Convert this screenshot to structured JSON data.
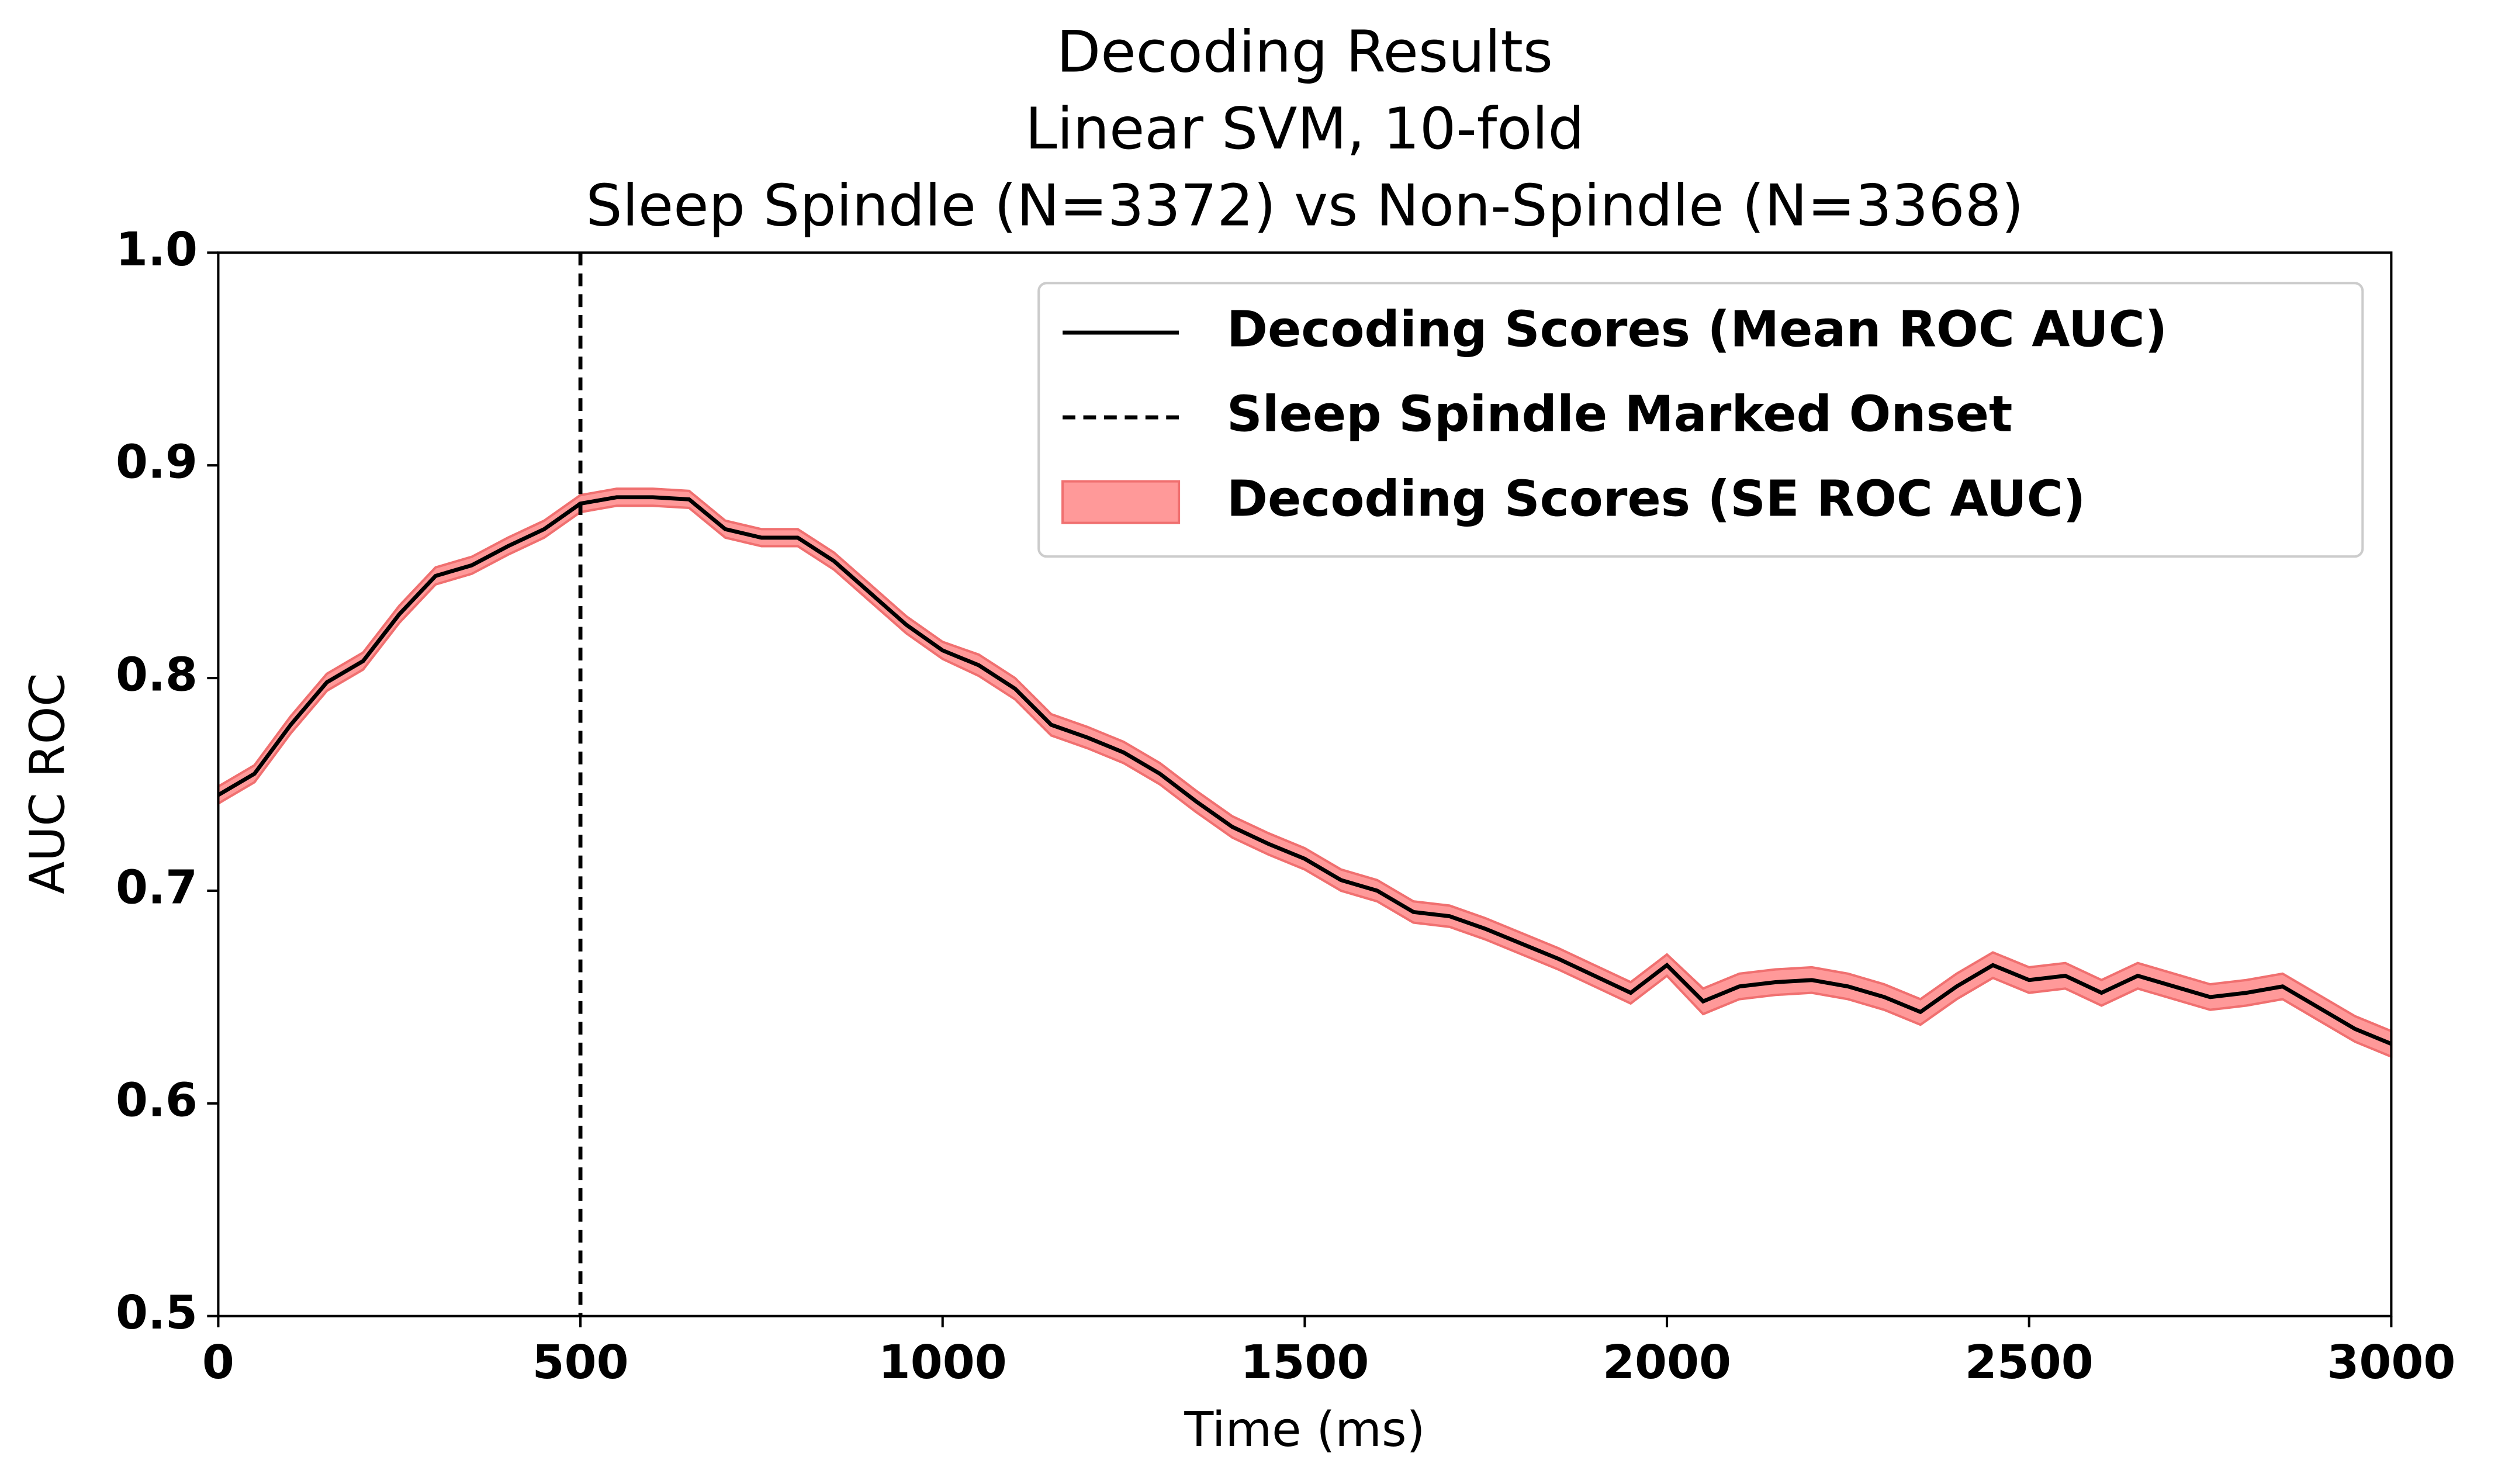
{
  "chart_data": {
    "type": "line",
    "title": [
      "Decoding Results",
      "Linear SVM, 10-fold",
      "Sleep Spindle (N=3372) vs Non-Spindle (N=3368)"
    ],
    "x_label": "Time (ms)",
    "y_label": "AUC ROC",
    "x": [
      0,
      50,
      100,
      150,
      200,
      250,
      300,
      350,
      400,
      450,
      500,
      550,
      600,
      650,
      700,
      750,
      800,
      850,
      900,
      950,
      1000,
      1050,
      1100,
      1150,
      1200,
      1250,
      1300,
      1350,
      1400,
      1450,
      1500,
      1550,
      1600,
      1650,
      1700,
      1750,
      1800,
      1850,
      1900,
      1950,
      2000,
      2050,
      2100,
      2150,
      2200,
      2250,
      2300,
      2350,
      2400,
      2450,
      2500,
      2550,
      2600,
      2650,
      2700,
      2750,
      2800,
      2850,
      2900,
      2950,
      3000
    ],
    "series": [
      {
        "name": "Decoding Scores (Mean ROC AUC)",
        "color": "#000000",
        "values": [
          0.745,
          0.755,
          0.778,
          0.798,
          0.808,
          0.83,
          0.848,
          0.853,
          0.862,
          0.87,
          0.882,
          0.885,
          0.885,
          0.884,
          0.87,
          0.866,
          0.866,
          0.855,
          0.84,
          0.825,
          0.813,
          0.806,
          0.795,
          0.778,
          0.772,
          0.765,
          0.755,
          0.742,
          0.73,
          0.722,
          0.715,
          0.705,
          0.7,
          0.69,
          0.688,
          0.682,
          0.675,
          0.668,
          0.66,
          0.652,
          0.665,
          0.648,
          0.655,
          0.657,
          0.658,
          0.655,
          0.65,
          0.643,
          0.655,
          0.665,
          0.658,
          0.66,
          0.652,
          0.66,
          0.655,
          0.65,
          0.652,
          0.655,
          0.645,
          0.635,
          0.628
        ]
      }
    ],
    "band": {
      "name": "Decoding Scores (SE ROC AUC)",
      "color": "#ff9999",
      "edge_color": "#f07070",
      "lower": [
        0.741,
        0.751,
        0.774,
        0.794,
        0.804,
        0.826,
        0.844,
        0.849,
        0.858,
        0.866,
        0.878,
        0.881,
        0.881,
        0.88,
        0.866,
        0.862,
        0.862,
        0.851,
        0.836,
        0.821,
        0.809,
        0.801,
        0.79,
        0.773,
        0.767,
        0.76,
        0.75,
        0.737,
        0.725,
        0.717,
        0.71,
        0.7,
        0.695,
        0.685,
        0.683,
        0.677,
        0.67,
        0.663,
        0.655,
        0.647,
        0.66,
        0.642,
        0.649,
        0.651,
        0.652,
        0.649,
        0.644,
        0.637,
        0.649,
        0.659,
        0.652,
        0.654,
        0.646,
        0.654,
        0.649,
        0.644,
        0.646,
        0.649,
        0.639,
        0.629,
        0.622
      ],
      "upper": [
        0.749,
        0.759,
        0.782,
        0.802,
        0.812,
        0.834,
        0.852,
        0.857,
        0.866,
        0.874,
        0.886,
        0.889,
        0.889,
        0.888,
        0.874,
        0.87,
        0.87,
        0.859,
        0.844,
        0.829,
        0.817,
        0.811,
        0.8,
        0.783,
        0.777,
        0.77,
        0.76,
        0.747,
        0.735,
        0.727,
        0.72,
        0.71,
        0.705,
        0.695,
        0.693,
        0.687,
        0.68,
        0.673,
        0.665,
        0.657,
        0.67,
        0.654,
        0.661,
        0.663,
        0.664,
        0.661,
        0.656,
        0.649,
        0.661,
        0.671,
        0.664,
        0.666,
        0.658,
        0.666,
        0.661,
        0.656,
        0.658,
        0.661,
        0.651,
        0.641,
        0.634
      ]
    },
    "vline": {
      "name": "Sleep Spindle Marked Onset",
      "x": 500,
      "color": "#000000"
    },
    "xlim": [
      0,
      3000
    ],
    "xticks": [
      0,
      500,
      1000,
      1500,
      2000,
      2500,
      3000
    ],
    "ylim": [
      0.5,
      1.0
    ],
    "yticks": [
      0.5,
      0.6,
      0.7,
      0.8,
      0.9,
      {
        "value": 1.0,
        "label": "1.0"
      }
    ],
    "legend": "upper right"
  }
}
